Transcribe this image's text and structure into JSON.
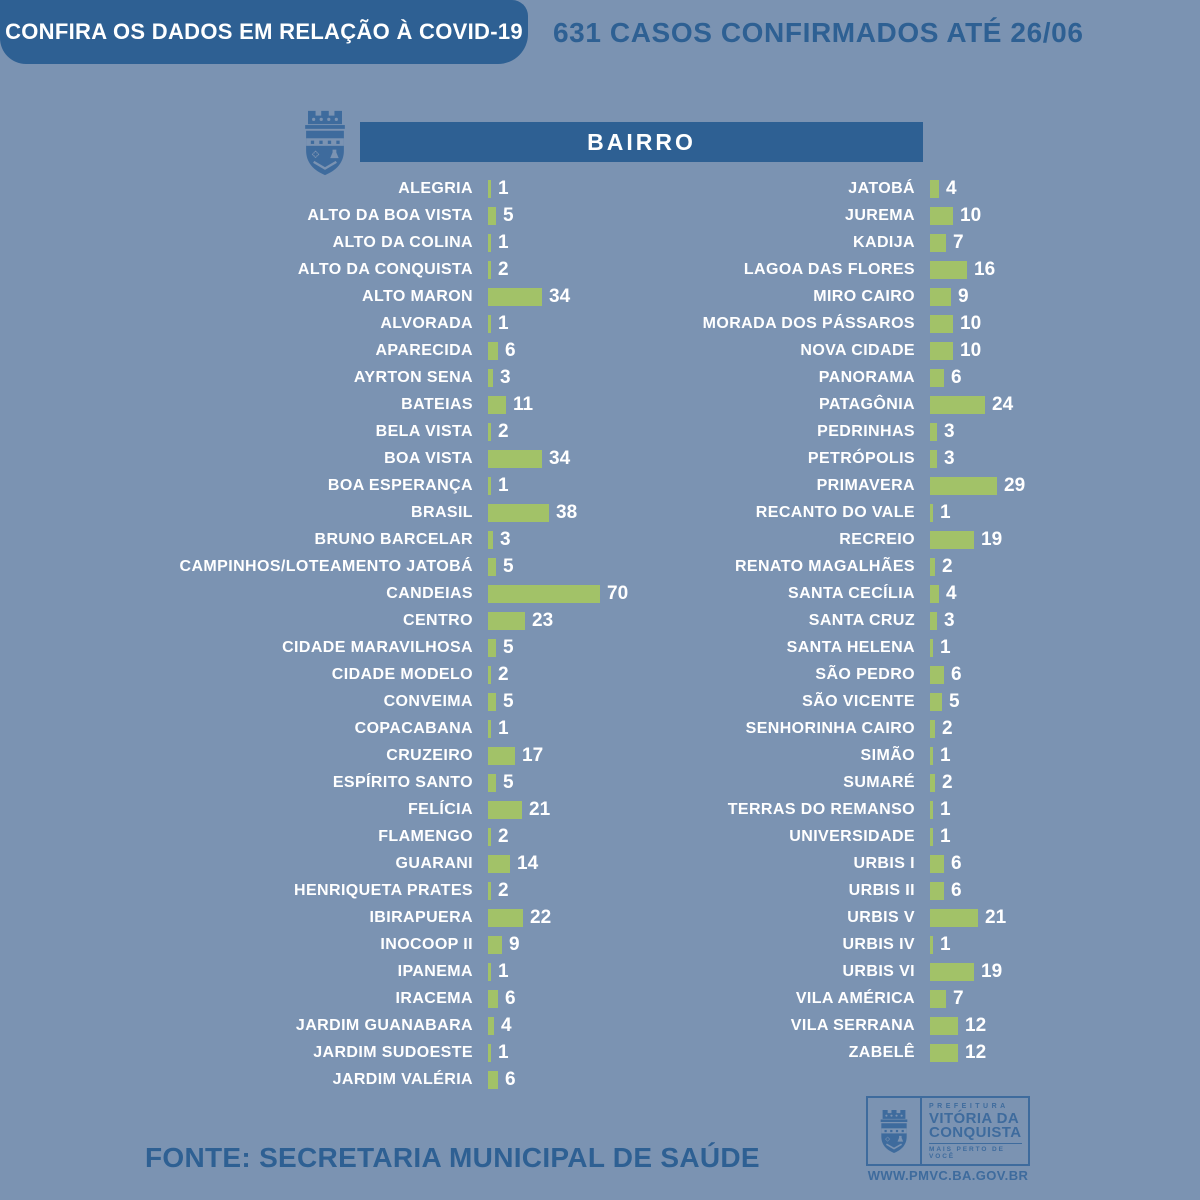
{
  "header": {
    "banner": "CONFIRA OS DADOS EM RELAÇÃO À COVID-19",
    "summary": "631 CASOS CONFIRMADOS ATÉ 26/06"
  },
  "chart_data": {
    "type": "bar",
    "orientation": "horizontal",
    "title": "BAIRRO",
    "total_confirmed": 631,
    "as_of_date": "26/06",
    "legend_position": "none",
    "grid": false,
    "columns": [
      {
        "categories": [
          "ALEGRIA",
          "ALTO DA BOA VISTA",
          "ALTO DA COLINA",
          "ALTO DA CONQUISTA",
          "ALTO MARON",
          "ALVORADA",
          "APARECIDA",
          "AYRTON SENA",
          "BATEIAS",
          "BELA VISTA",
          "BOA VISTA",
          "BOA ESPERANÇA",
          "BRASIL",
          "BRUNO BARCELAR",
          "CAMPINHOS/LOTEAMENTO JATOBÁ",
          "CANDEIAS",
          "CENTRO",
          "CIDADE MARAVILHOSA",
          "CIDADE MODELO",
          "CONVEIMA",
          "COPACABANA",
          "CRUZEIRO",
          "ESPÍRITO SANTO",
          "FELÍCIA",
          "FLAMENGO",
          "GUARANI",
          "HENRIQUETA PRATES",
          "IBIRAPUERA",
          "INOCOOP II",
          "IPANEMA",
          "IRACEMA",
          "JARDIM GUANABARA",
          "JARDIM SUDOESTE",
          "JARDIM VALÉRIA"
        ],
        "values": [
          1,
          5,
          1,
          2,
          34,
          1,
          6,
          3,
          11,
          2,
          34,
          1,
          38,
          3,
          5,
          70,
          23,
          5,
          2,
          5,
          1,
          17,
          5,
          21,
          2,
          14,
          2,
          22,
          9,
          1,
          6,
          4,
          1,
          6
        ]
      },
      {
        "categories": [
          "JATOBÁ",
          "JUREMA",
          "KADIJA",
          "LAGOA DAS FLORES",
          "MIRO CAIRO",
          "MORADA DOS PÁSSAROS",
          "NOVA CIDADE",
          "PANORAMA",
          "PATAGÔNIA",
          "PEDRINHAS",
          "PETRÓPOLIS",
          "PRIMAVERA",
          "RECANTO DO VALE",
          "RECREIO",
          "RENATO MAGALHÃES",
          "SANTA CECÍLIA",
          "SANTA CRUZ",
          "SANTA HELENA",
          "SÃO PEDRO",
          "SÃO VICENTE",
          "SENHORINHA CAIRO",
          "SIMÃO",
          "SUMARÉ",
          "TERRAS DO REMANSO",
          "UNIVERSIDADE",
          "URBIS I",
          "URBIS II",
          "URBIS V",
          "URBIS IV",
          "URBIS VI",
          "VILA AMÉRICA",
          "VILA SERRANA",
          "ZABELÊ"
        ],
        "values": [
          4,
          10,
          7,
          16,
          9,
          10,
          10,
          6,
          24,
          3,
          3,
          29,
          1,
          19,
          2,
          4,
          3,
          1,
          6,
          5,
          2,
          1,
          2,
          1,
          1,
          6,
          6,
          21,
          1,
          19,
          7,
          12,
          12
        ]
      }
    ]
  },
  "footer": {
    "source": "FONTE: SECRETARIA MUNICIPAL DE SAÚDE",
    "logo": {
      "line1": "PREFEITURA",
      "line2": "VITÓRIA DA",
      "line3": "CONQUISTA",
      "tagline": "MAIS PERTO DE VOCÊ",
      "url": "WWW.PMVC.BA.GOV.BR"
    }
  },
  "colors": {
    "background": "#7b93b2",
    "primary_blue": "#2e6093",
    "bar_green": "#a2c268",
    "logo_blue": "#3e6b9d",
    "text_white": "#ffffff"
  }
}
